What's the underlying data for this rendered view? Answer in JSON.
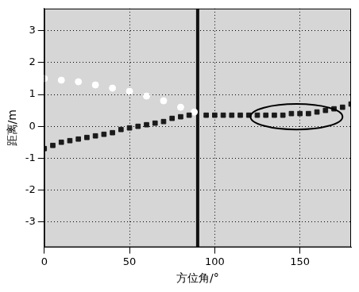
{
  "chart_data": {
    "type": "scatter",
    "x_label": "方位角/°",
    "y_label": "距离/m",
    "xlim": [
      0,
      180
    ],
    "xticks": [
      0,
      50,
      100,
      150
    ],
    "ylim": [
      -3.8,
      3.7
    ],
    "yticks": [
      -3,
      -2,
      -1,
      0,
      1,
      2,
      3
    ],
    "grid": true,
    "series": [
      {
        "type": "scatter",
        "color": "#1a1a1a",
        "marker": "square",
        "x": [
          0,
          5,
          10,
          15,
          20,
          25,
          30,
          35,
          40,
          45,
          50,
          55,
          60,
          65,
          70,
          75,
          80,
          85,
          95,
          100,
          105,
          110,
          115,
          120,
          125,
          130,
          135,
          140,
          145,
          150,
          155,
          160,
          165,
          170,
          175,
          180
        ],
        "values": [
          -0.7,
          -0.6,
          -0.5,
          -0.45,
          -0.4,
          -0.35,
          -0.3,
          -0.25,
          -0.2,
          -0.1,
          -0.05,
          0.0,
          0.05,
          0.1,
          0.15,
          0.25,
          0.3,
          0.35,
          0.35,
          0.35,
          0.35,
          0.35,
          0.35,
          0.35,
          0.35,
          0.35,
          0.35,
          0.35,
          0.4,
          0.4,
          0.4,
          0.45,
          0.5,
          0.55,
          0.6,
          0.7
        ]
      },
      {
        "type": "scatter",
        "color": "#ffffff",
        "marker": "circle",
        "x": [
          0,
          10,
          20,
          30,
          40,
          50,
          60,
          70,
          80,
          88
        ],
        "values": [
          1.5,
          1.45,
          1.4,
          1.3,
          1.2,
          1.1,
          0.95,
          0.8,
          0.6,
          0.45
        ]
      },
      {
        "type": "line",
        "color": "#111111",
        "line_style": "solid",
        "x": [
          90,
          90
        ],
        "values": [
          -3.8,
          3.7
        ]
      }
    ],
    "ellipse": {
      "center": [
        148,
        0.3
      ],
      "width": 54,
      "height": 0.8
    }
  }
}
